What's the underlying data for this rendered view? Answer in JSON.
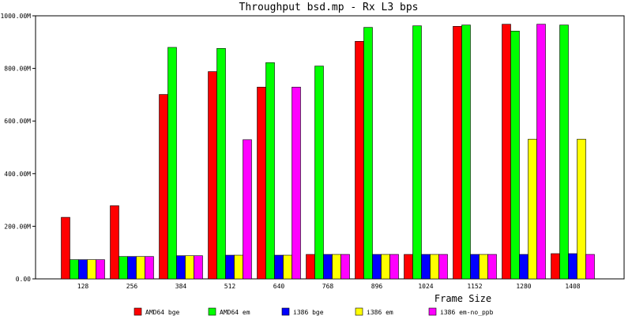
{
  "chart_data": {
    "type": "bar",
    "title": "Throughput bsd.mp - Rx L3 bps",
    "xlabel": "Frame Size",
    "ylabel": "",
    "ylim": [
      0,
      1000
    ],
    "yticks": [
      {
        "value": 0,
        "label": "0.00"
      },
      {
        "value": 200,
        "label": "200.00M"
      },
      {
        "value": 400,
        "label": "400.00M"
      },
      {
        "value": 600,
        "label": "600.00M"
      },
      {
        "value": 800,
        "label": "800.00M"
      },
      {
        "value": 1000,
        "label": "1000.00M"
      }
    ],
    "categories": [
      "128",
      "256",
      "384",
      "512",
      "640",
      "768",
      "896",
      "1024",
      "1152",
      "1280",
      "1408"
    ],
    "series": [
      {
        "name": "AMD64 bge",
        "color": "#ff0000",
        "values": [
          234,
          278,
          701,
          788,
          729,
          93,
          903,
          93,
          960,
          968,
          96
        ]
      },
      {
        "name": "AMD64 em",
        "color": "#00ff00",
        "values": [
          73,
          85,
          880,
          876,
          822,
          809,
          956,
          962,
          965,
          942,
          965
        ]
      },
      {
        "name": "i386 bge",
        "color": "#0000ff",
        "values": [
          73,
          85,
          88,
          90,
          90,
          93,
          93,
          93,
          93,
          93,
          96
        ]
      },
      {
        "name": "i386 em",
        "color": "#ffff00",
        "values": [
          73,
          85,
          88,
          90,
          90,
          93,
          93,
          93,
          93,
          531,
          531
        ]
      },
      {
        "name": "i386 em-no_ppb",
        "color": "#ff00ff",
        "values": [
          73,
          85,
          88,
          529,
          729,
          93,
          93,
          93,
          93,
          968,
          93
        ]
      }
    ],
    "grid": false,
    "legend_position": "bottom"
  }
}
